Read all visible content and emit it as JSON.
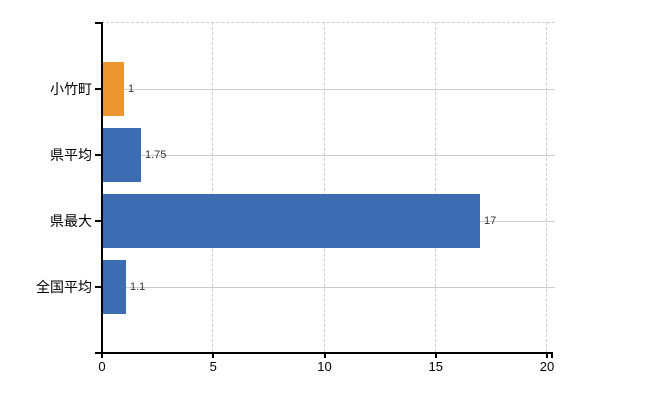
{
  "chart_data": {
    "type": "bar",
    "orientation": "horizontal",
    "title": "",
    "xlabel": "",
    "ylabel": "",
    "categories": [
      "小竹町",
      "県平均",
      "県最大",
      "全国平均"
    ],
    "values": [
      1,
      1.75,
      17,
      1.1
    ],
    "value_labels": [
      "1",
      "1.75",
      "17",
      "1.1"
    ],
    "xlim": [
      0,
      20
    ],
    "x_ticks": [
      0,
      5,
      10,
      15,
      20
    ],
    "x_tick_labels": [
      "0",
      "5",
      "10",
      "15",
      "20"
    ],
    "grid": "horizontal solid, vertical dashed, top border dashed",
    "legend_position": "none",
    "highlighted_category": "小竹町",
    "bar_colors": [
      "#ed9530",
      "#3c6db3",
      "#3c6db3",
      "#3c6db3"
    ],
    "colors": {
      "highlight_bar": "#ed9530",
      "default_bar": "#3c6db3",
      "grid": "#cccccc",
      "axis": "#000000",
      "category_label": "#000000",
      "x_tick_label": "#000000",
      "value_label": "#333333",
      "background": "#ffffff"
    }
  }
}
